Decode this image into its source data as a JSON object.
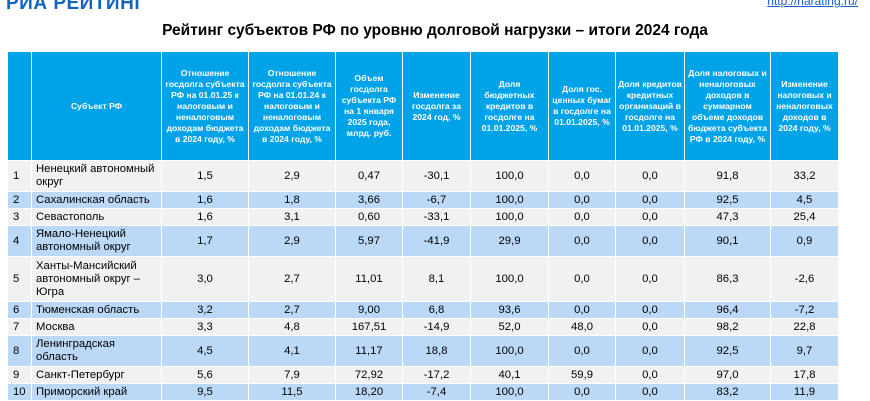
{
  "header": {
    "logo": "РИА РЕЙТИНГ",
    "url": "http://riarating.ru/"
  },
  "title": "Рейтинг субъектов РФ по уровню долговой нагрузки – итоги 2024 года",
  "table": {
    "columns": [
      "",
      "Субъект РФ",
      "Отношение госдолга субъекта РФ на 01.01.25 к налоговым и неналоговым доходам бюджета в 2024 году, %",
      "Отношение госдолга субъекта РФ на 01.01.24 к налоговым и неналоговым доходам бюджета в 2024 году, %",
      "Объем госдолга субъекта РФ на 1 января 2025 года, млрд. руб.",
      "Изменение госдолга за 2024 год, %",
      "Доля бюджетных кредитов в госдолге на 01.01.2025, %",
      "Доля гос. ценных бумаг в госдолге на 01.01.2025, %",
      "Доля кредитов кредитных организаций в госдолге на 01.01.2025, %",
      "Доля налоговых и неналоговых доходов в суммарном объеме доходов бюджета субъекта РФ в 2024 году, %",
      "Изменение налоговых и неналоговых доходов в 2024 году, %"
    ],
    "rows": [
      {
        "rank": "1",
        "region": "Ненецкий автономный округ",
        "v": [
          "1,5",
          "2,9",
          "0,47",
          "-30,1",
          "100,0",
          "0,0",
          "0,0",
          "91,8",
          "33,2"
        ]
      },
      {
        "rank": "2",
        "region": "Сахалинская область",
        "v": [
          "1,6",
          "1,8",
          "3,66",
          "-6,7",
          "100,0",
          "0,0",
          "0,0",
          "92,5",
          "4,5"
        ]
      },
      {
        "rank": "3",
        "region": "Севастополь",
        "v": [
          "1,6",
          "3,1",
          "0,60",
          "-33,1",
          "100,0",
          "0,0",
          "0,0",
          "47,3",
          "25,4"
        ]
      },
      {
        "rank": "4",
        "region": "Ямало-Ненецкий автономный округ",
        "v": [
          "1,7",
          "2,9",
          "5,97",
          "-41,9",
          "29,9",
          "0,0",
          "0,0",
          "90,1",
          "0,9"
        ]
      },
      {
        "rank": "5",
        "region": "Ханты-Мансийский автономный округ – Югра",
        "v": [
          "3,0",
          "2,7",
          "11,01",
          "8,1",
          "100,0",
          "0,0",
          "0,0",
          "86,3",
          "-2,6"
        ]
      },
      {
        "rank": "6",
        "region": "Тюменская область",
        "v": [
          "3,2",
          "2,7",
          "9,00",
          "6,8",
          "93,6",
          "0,0",
          "0,0",
          "96,4",
          "-7,2"
        ]
      },
      {
        "rank": "7",
        "region": "Москва",
        "v": [
          "3,3",
          "4,8",
          "167,51",
          "-14,9",
          "52,0",
          "48,0",
          "0,0",
          "98,2",
          "22,8"
        ]
      },
      {
        "rank": "8",
        "region": "Ленинградская область",
        "v": [
          "4,5",
          "4,1",
          "11,17",
          "18,8",
          "100,0",
          "0,0",
          "0,0",
          "92,5",
          "9,7"
        ]
      },
      {
        "rank": "9",
        "region": "Санкт-Петербург",
        "v": [
          "5,6",
          "7,9",
          "72,92",
          "-17,2",
          "40,1",
          "59,9",
          "0,0",
          "97,0",
          "17,8"
        ]
      },
      {
        "rank": "10",
        "region": "Приморский край",
        "v": [
          "9,5",
          "11,5",
          "18,20",
          "-7,4",
          "100,0",
          "0,0",
          "0,0",
          "83,2",
          "11,9"
        ]
      }
    ]
  }
}
